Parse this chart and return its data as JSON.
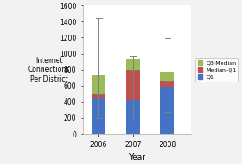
{
  "years": [
    2006,
    2007,
    2008
  ],
  "q1": [
    450,
    420,
    590
  ],
  "median_q1": [
    50,
    380,
    70
  ],
  "q3_median": [
    225,
    125,
    115
  ],
  "whisker_low": [
    200,
    170,
    280
  ],
  "whisker_high": [
    1450,
    970,
    1190
  ],
  "colors": {
    "q1": "#4472C4",
    "median_q1": "#C0504D",
    "q3_median": "#9BBB59"
  },
  "ylabel": "Internet\nConnections\nPer District",
  "xlabel": "Year",
  "ylim": [
    0,
    1600
  ],
  "yticks": [
    0,
    200,
    400,
    600,
    800,
    1000,
    1200,
    1400,
    1600
  ],
  "bg_color": "#F2F2F2",
  "plot_bg": "#FFFFFF",
  "bar_width": 0.4
}
